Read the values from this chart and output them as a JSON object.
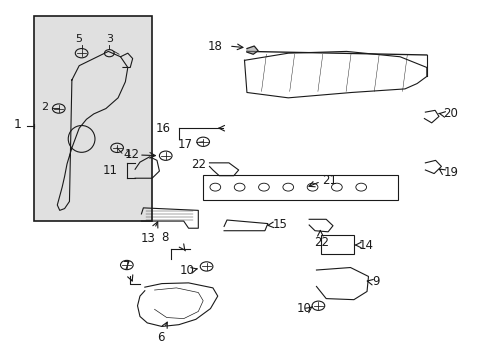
{
  "bg_color": "#ffffff",
  "line_color": "#1a1a1a",
  "fig_width": 4.89,
  "fig_height": 3.6,
  "dpi": 100,
  "inset_bg": "#e0e0e0"
}
